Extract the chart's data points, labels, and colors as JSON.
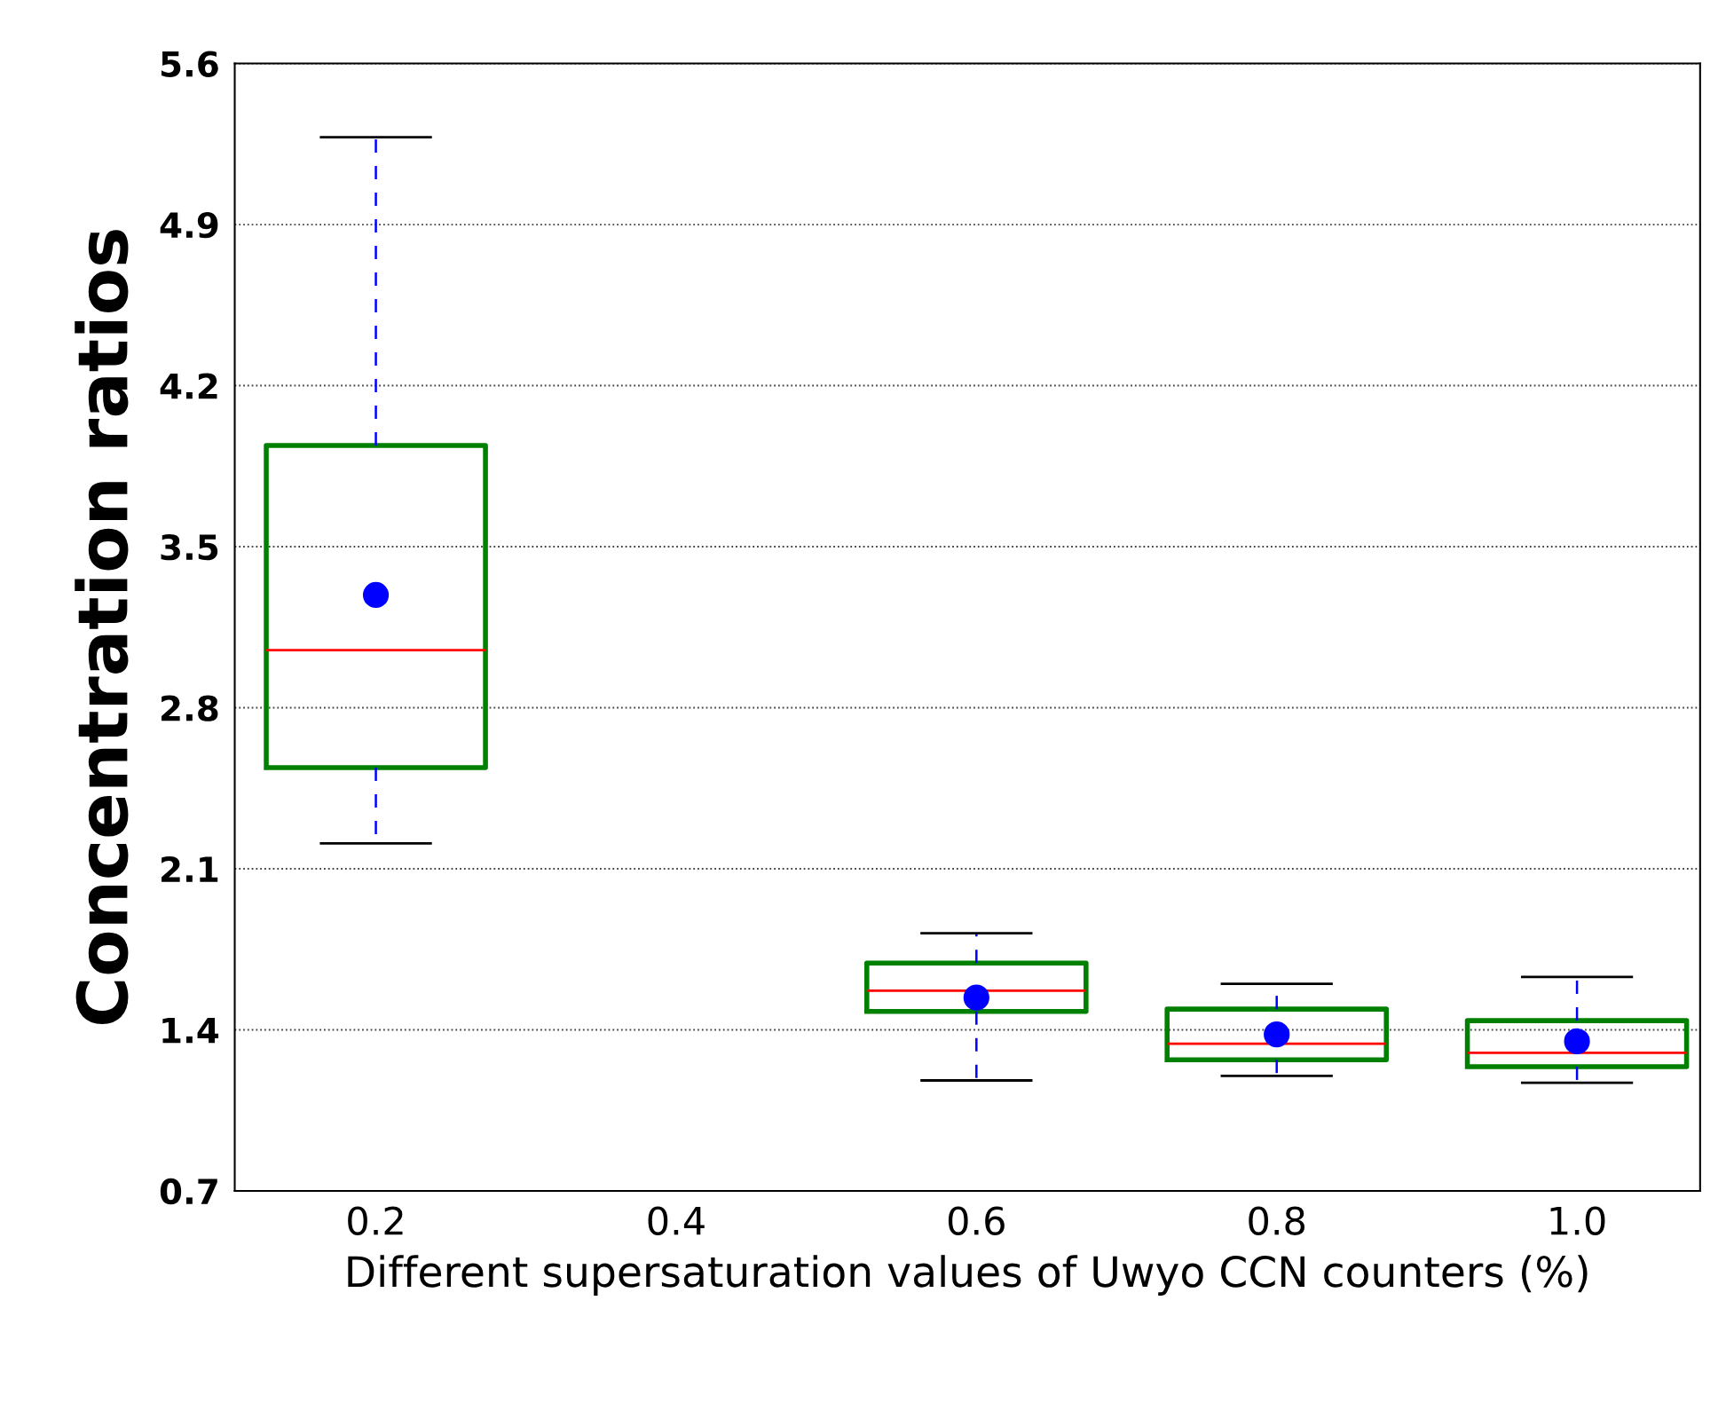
{
  "chart_data": {
    "type": "box",
    "xlabel": "Different supersaturation values of Uwyo CCN counters (%)",
    "ylabel": "Concentration ratios",
    "categories": [
      "0.2",
      "0.4",
      "0.6",
      "0.8",
      "1.0"
    ],
    "series": [
      {
        "color": "#008000",
        "boxes": [
          {
            "low": 2.21,
            "q1": 2.54,
            "median": 3.05,
            "q3": 3.94,
            "high": 5.28,
            "mean": 3.29
          },
          null,
          {
            "low": 1.18,
            "q1": 1.48,
            "median": 1.57,
            "q3": 1.69,
            "high": 1.82,
            "mean": 1.54
          },
          {
            "low": 1.2,
            "q1": 1.27,
            "median": 1.34,
            "q3": 1.49,
            "high": 1.6,
            "mean": 1.38
          },
          {
            "low": 1.17,
            "q1": 1.24,
            "median": 1.3,
            "q3": 1.44,
            "high": 1.63,
            "mean": 1.35
          }
        ]
      }
    ],
    "ylim": [
      0.7,
      5.6
    ],
    "yticks": [
      0.7,
      1.4,
      2.1,
      2.8,
      3.5,
      4.2,
      4.9,
      5.6
    ],
    "grid": "y"
  }
}
